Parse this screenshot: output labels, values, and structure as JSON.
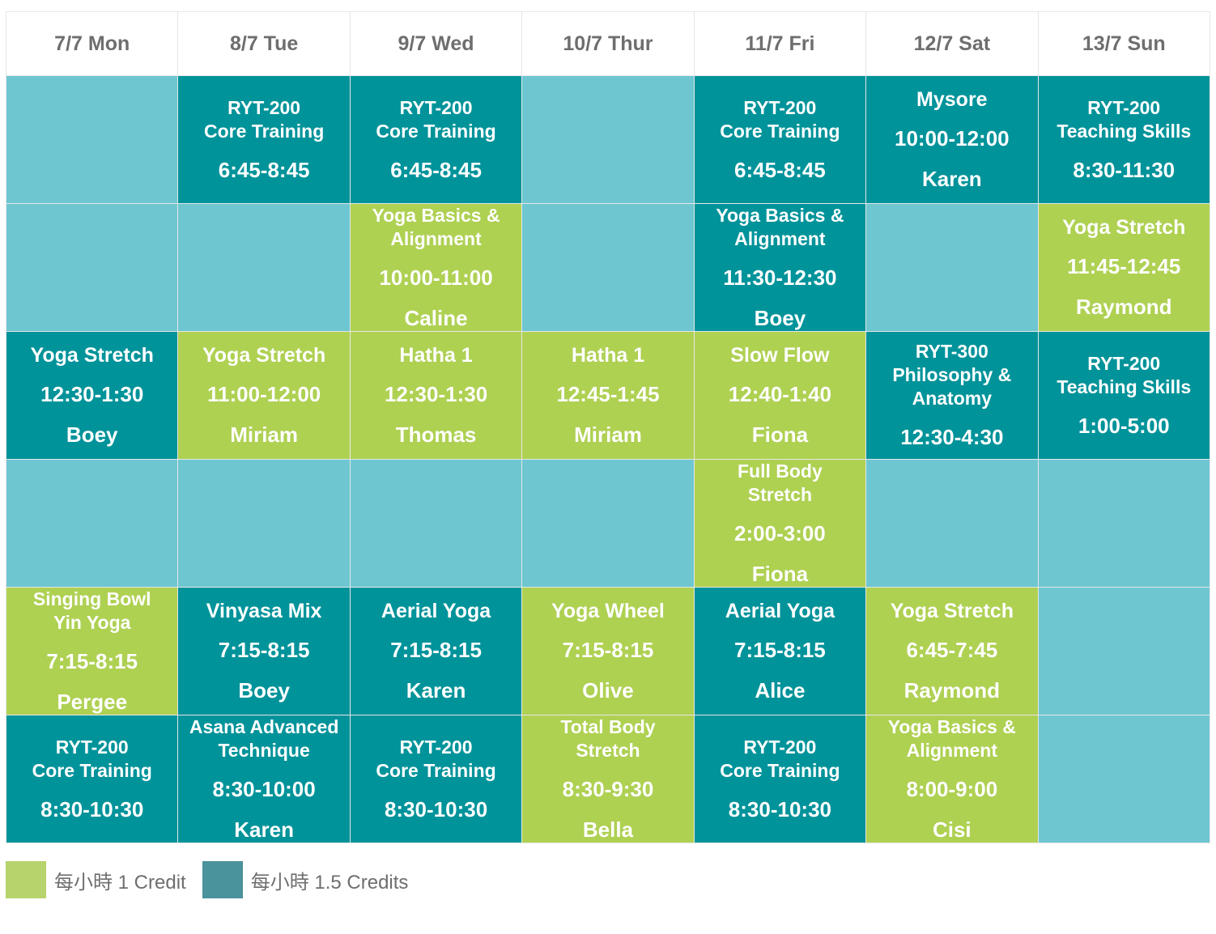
{
  "days": [
    "7/7 Mon",
    "8/7 Tue",
    "9/7 Wed",
    "10/7 Thur",
    "11/7 Fri",
    "12/7 Sat",
    "13/7 Sun"
  ],
  "rows": [
    [
      {
        "type": "empty"
      },
      {
        "type": "teal",
        "name": "RYT-200\nCore Training",
        "time": "6:45-8:45",
        "teacher": ""
      },
      {
        "type": "teal",
        "name": "RYT-200\nCore Training",
        "time": "6:45-8:45",
        "teacher": ""
      },
      {
        "type": "empty"
      },
      {
        "type": "teal",
        "name": "RYT-200\nCore Training",
        "time": "6:45-8:45",
        "teacher": ""
      },
      {
        "type": "teal",
        "name": "Mysore",
        "time": "10:00-12:00",
        "teacher": "Karen"
      },
      {
        "type": "teal",
        "name": "RYT-200\nTeaching Skills",
        "time": "8:30-11:30",
        "teacher": ""
      }
    ],
    [
      {
        "type": "empty"
      },
      {
        "type": "empty"
      },
      {
        "type": "green",
        "name": "Yoga Basics &\nAlignment",
        "time": "10:00-11:00",
        "teacher": "Caline"
      },
      {
        "type": "empty"
      },
      {
        "type": "teal",
        "name": "Yoga Basics &\nAlignment",
        "time": "11:30-12:30",
        "teacher": "Boey"
      },
      {
        "type": "empty"
      },
      {
        "type": "green",
        "name": "Yoga Stretch",
        "time": "11:45-12:45",
        "teacher": "Raymond"
      }
    ],
    [
      {
        "type": "teal",
        "name": "Yoga Stretch",
        "time": "12:30-1:30",
        "teacher": "Boey"
      },
      {
        "type": "green",
        "name": "Yoga Stretch",
        "time": "11:00-12:00",
        "teacher": "Miriam"
      },
      {
        "type": "green",
        "name": "Hatha 1",
        "time": "12:30-1:30",
        "teacher": "Thomas"
      },
      {
        "type": "green",
        "name": "Hatha 1",
        "time": "12:45-1:45",
        "teacher": "Miriam"
      },
      {
        "type": "green",
        "name": "Slow Flow",
        "time": "12:40-1:40",
        "teacher": "Fiona"
      },
      {
        "type": "teal",
        "name": "RYT-300\nPhilosophy &\nAnatomy",
        "time": "12:30-4:30",
        "teacher": ""
      },
      {
        "type": "teal",
        "name": "RYT-200\nTeaching Skills",
        "time": "1:00-5:00",
        "teacher": ""
      }
    ],
    [
      {
        "type": "empty"
      },
      {
        "type": "empty"
      },
      {
        "type": "empty"
      },
      {
        "type": "empty"
      },
      {
        "type": "green",
        "name": "Full Body\nStretch",
        "time": "2:00-3:00",
        "teacher": "Fiona"
      },
      {
        "type": "empty"
      },
      {
        "type": "empty"
      }
    ],
    [
      {
        "type": "green",
        "name": "Singing Bowl\nYin Yoga",
        "time": "7:15-8:15",
        "teacher": "Pergee"
      },
      {
        "type": "teal",
        "name": "Vinyasa Mix",
        "time": "7:15-8:15",
        "teacher": "Boey"
      },
      {
        "type": "teal",
        "name": "Aerial Yoga",
        "time": "7:15-8:15",
        "teacher": "Karen"
      },
      {
        "type": "green",
        "name": "Yoga Wheel",
        "time": "7:15-8:15",
        "teacher": "Olive"
      },
      {
        "type": "teal",
        "name": "Aerial Yoga",
        "time": "7:15-8:15",
        "teacher": "Alice"
      },
      {
        "type": "green",
        "name": "Yoga Stretch",
        "time": "6:45-7:45",
        "teacher": "Raymond"
      },
      {
        "type": "empty"
      }
    ],
    [
      {
        "type": "teal",
        "name": "RYT-200\nCore Training",
        "time": "8:30-10:30",
        "teacher": ""
      },
      {
        "type": "teal",
        "name": "Asana Advanced\nTechnique",
        "time": "8:30-10:00",
        "teacher": "Karen"
      },
      {
        "type": "teal",
        "name": "RYT-200\nCore Training",
        "time": "8:30-10:30",
        "teacher": ""
      },
      {
        "type": "green",
        "name": "Total Body\nStretch",
        "time": "8:30-9:30",
        "teacher": "Bella"
      },
      {
        "type": "teal",
        "name": "RYT-200\nCore Training",
        "time": "8:30-10:30",
        "teacher": ""
      },
      {
        "type": "green",
        "name": "Yoga Basics &\nAlignment",
        "time": "8:00-9:00",
        "teacher": "Cisi"
      },
      {
        "type": "empty"
      }
    ]
  ],
  "legend": [
    {
      "label": "每小時 1 Credit",
      "color": "#b7d36b"
    },
    {
      "label": "每小時 1.5 Credits",
      "color": "#4a929c"
    }
  ]
}
